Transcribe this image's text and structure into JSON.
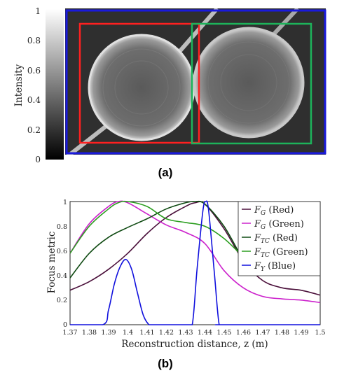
{
  "panel_a": {
    "label": "(a)",
    "colorbar": {
      "label": "Intensity",
      "ticks": [
        "0",
        "0.2",
        "0.4",
        "0.6",
        "0.8",
        "1"
      ],
      "range": [
        0,
        1
      ]
    },
    "boxes": [
      {
        "name": "Red",
        "color": "#ff2020"
      },
      {
        "name": "Green",
        "color": "#1db35a"
      },
      {
        "name": "Blue",
        "color": "#1a1adc"
      }
    ]
  },
  "panel_b": {
    "label": "(b)"
  },
  "chart_data": {
    "type": "line",
    "xlabel": "Reconstruction distance, z (m)",
    "ylabel": "Focus metric",
    "xlim": [
      1.37,
      1.5
    ],
    "ylim": [
      0,
      1
    ],
    "xticks": [
      "1.37",
      "1.38",
      "1.39",
      "1.4",
      "1.41",
      "1.42",
      "1.43",
      "1.44",
      "1.45",
      "1.46",
      "1.47",
      "1.48",
      "1.49",
      "1.5"
    ],
    "yticks": [
      "0",
      "0.2",
      "0.4",
      "0.6",
      "0.8",
      "1"
    ],
    "legend_position": "top-right",
    "series": [
      {
        "name": "F_G (Red)",
        "sym": "F",
        "sub": "G",
        "suffix": " (Red)",
        "color": "#4a0f3a",
        "x": [
          1.37,
          1.38,
          1.39,
          1.4,
          1.41,
          1.42,
          1.43,
          1.435,
          1.44,
          1.45,
          1.46,
          1.47,
          1.48,
          1.49,
          1.5
        ],
        "y": [
          0.28,
          0.35,
          0.45,
          0.58,
          0.74,
          0.87,
          0.96,
          0.99,
          0.98,
          0.78,
          0.52,
          0.36,
          0.3,
          0.28,
          0.24
        ]
      },
      {
        "name": "F_G (Green)",
        "sym": "F",
        "sub": "G",
        "suffix": " (Green)",
        "color": "#cc22cc",
        "x": [
          1.37,
          1.38,
          1.39,
          1.395,
          1.4,
          1.41,
          1.42,
          1.43,
          1.44,
          1.45,
          1.46,
          1.47,
          1.48,
          1.49,
          1.5
        ],
        "y": [
          0.58,
          0.82,
          0.96,
          1.0,
          0.99,
          0.9,
          0.81,
          0.75,
          0.66,
          0.44,
          0.3,
          0.23,
          0.21,
          0.2,
          0.18
        ]
      },
      {
        "name": "F_TC (Red)",
        "sym": "F",
        "sub": "TC",
        "suffix": " (Red)",
        "color": "#0f4a12",
        "x": [
          1.37,
          1.38,
          1.39,
          1.4,
          1.41,
          1.42,
          1.43,
          1.435,
          1.44,
          1.45,
          1.46
        ],
        "y": [
          0.38,
          0.58,
          0.71,
          0.79,
          0.86,
          0.94,
          0.99,
          1.0,
          0.98,
          0.8,
          0.52
        ]
      },
      {
        "name": "F_TC (Green)",
        "sym": "F",
        "sub": "TC",
        "suffix": " (Green)",
        "color": "#2c9e20",
        "x": [
          1.37,
          1.38,
          1.39,
          1.395,
          1.4,
          1.41,
          1.42,
          1.43,
          1.44,
          1.45,
          1.46
        ],
        "y": [
          0.58,
          0.8,
          0.94,
          0.99,
          1.0,
          0.96,
          0.86,
          0.83,
          0.8,
          0.7,
          0.55
        ]
      },
      {
        "name": "F_Y (Blue)",
        "sym": "F",
        "sub": "Y",
        "suffix": " (Blue)",
        "color": "#1010dd",
        "x": [
          1.37,
          1.387,
          1.39,
          1.393,
          1.396,
          1.399,
          1.402,
          1.405,
          1.408,
          1.411,
          1.413,
          1.43,
          1.4335,
          1.436,
          1.439,
          1.4405,
          1.442,
          1.445,
          1.4475,
          1.45,
          1.5
        ],
        "y": [
          0,
          0,
          0.12,
          0.33,
          0.47,
          0.53,
          0.45,
          0.26,
          0.08,
          0,
          0,
          0,
          0,
          0.45,
          0.92,
          1.0,
          0.93,
          0.42,
          0,
          0,
          0
        ]
      }
    ]
  }
}
